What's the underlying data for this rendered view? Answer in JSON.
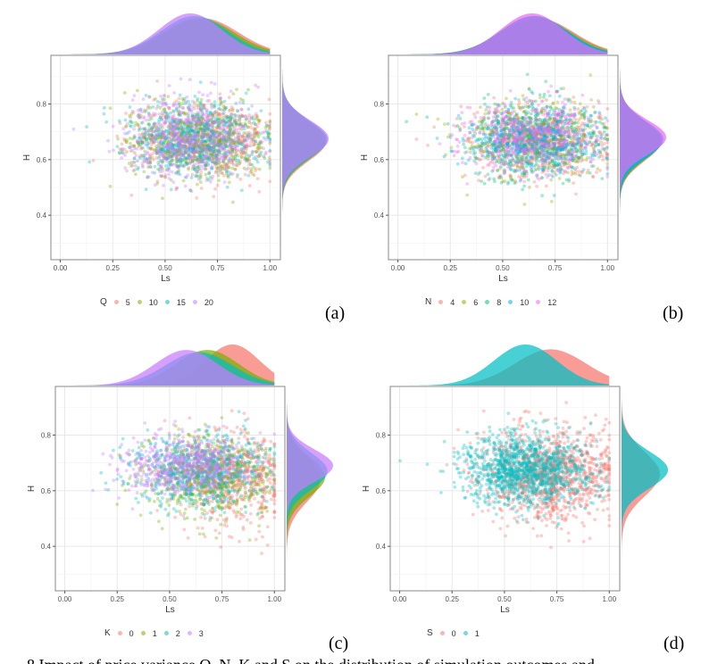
{
  "chart_data": [
    {
      "type": "scatter",
      "panel_label": "(a)",
      "xlabel": "Ls",
      "ylabel": "H",
      "xlim": [
        -0.045,
        1.05
      ],
      "ylim": [
        0.24,
        0.975
      ],
      "x_ticks": [
        "0.00",
        "0.25",
        "0.50",
        "0.75",
        "1.00"
      ],
      "y_ticks": [
        "0.4",
        "0.6",
        "0.8"
      ],
      "grid": true,
      "marginal_density": true,
      "legend": {
        "title": "Q",
        "placement": "bottom"
      },
      "series": [
        {
          "name": "5",
          "color": "#F8766D",
          "ls_mean": 0.68,
          "ls_sd": 0.17,
          "h_mean": 0.665,
          "h_sd": 0.07
        },
        {
          "name": "10",
          "color": "#7CAE00",
          "ls_mean": 0.66,
          "ls_sd": 0.17,
          "h_mean": 0.67,
          "h_sd": 0.07
        },
        {
          "name": "15",
          "color": "#00BFC4",
          "ls_mean": 0.64,
          "ls_sd": 0.16,
          "h_mean": 0.672,
          "h_sd": 0.068
        },
        {
          "name": "20",
          "color": "#C77CFF",
          "ls_mean": 0.62,
          "ls_sd": 0.15,
          "h_mean": 0.675,
          "h_sd": 0.066
        }
      ]
    },
    {
      "type": "scatter",
      "panel_label": "(b)",
      "xlabel": "Ls",
      "ylabel": "H",
      "xlim": [
        -0.045,
        1.05
      ],
      "ylim": [
        0.24,
        0.975
      ],
      "x_ticks": [
        "0.00",
        "0.25",
        "0.50",
        "0.75",
        "1.00"
      ],
      "y_ticks": [
        "0.4",
        "0.6",
        "0.8"
      ],
      "grid": true,
      "marginal_density": true,
      "legend": {
        "title": "N",
        "placement": "bottom"
      },
      "series": [
        {
          "name": "4",
          "color": "#F8766D",
          "ls_mean": 0.67,
          "ls_sd": 0.17,
          "h_mean": 0.665,
          "h_sd": 0.07
        },
        {
          "name": "6",
          "color": "#A3A500",
          "ls_mean": 0.66,
          "ls_sd": 0.17,
          "h_mean": 0.668,
          "h_sd": 0.07
        },
        {
          "name": "8",
          "color": "#00BF7D",
          "ls_mean": 0.65,
          "ls_sd": 0.16,
          "h_mean": 0.67,
          "h_sd": 0.068
        },
        {
          "name": "10",
          "color": "#00B0F6",
          "ls_mean": 0.65,
          "ls_sd": 0.16,
          "h_mean": 0.672,
          "h_sd": 0.066
        },
        {
          "name": "12",
          "color": "#E76BF3",
          "ls_mean": 0.64,
          "ls_sd": 0.15,
          "h_mean": 0.68,
          "h_sd": 0.062
        }
      ]
    },
    {
      "type": "scatter",
      "panel_label": "(c)",
      "xlabel": "Ls",
      "ylabel": "H",
      "xlim": [
        -0.045,
        1.05
      ],
      "ylim": [
        0.24,
        0.975
      ],
      "x_ticks": [
        "0.00",
        "0.25",
        "0.50",
        "0.75",
        "1.00"
      ],
      "y_ticks": [
        "0.4",
        "0.6",
        "0.8"
      ],
      "grid": true,
      "marginal_density": true,
      "legend": {
        "title": "K",
        "placement": "bottom"
      },
      "series": [
        {
          "name": "0",
          "color": "#F8766D",
          "ls_mean": 0.8,
          "ls_sd": 0.13,
          "h_mean": 0.64,
          "h_sd": 0.08
        },
        {
          "name": "1",
          "color": "#7CAE00",
          "ls_mean": 0.68,
          "ls_sd": 0.15,
          "h_mean": 0.65,
          "h_sd": 0.07
        },
        {
          "name": "2",
          "color": "#00BFC4",
          "ls_mean": 0.64,
          "ls_sd": 0.16,
          "h_mean": 0.67,
          "h_sd": 0.066
        },
        {
          "name": "3",
          "color": "#C77CFF",
          "ls_mean": 0.58,
          "ls_sd": 0.15,
          "h_mean": 0.69,
          "h_sd": 0.058
        }
      ]
    },
    {
      "type": "scatter",
      "panel_label": "(d)",
      "xlabel": "Ls",
      "ylabel": "H",
      "xlim": [
        -0.045,
        1.05
      ],
      "ylim": [
        0.24,
        0.975
      ],
      "x_ticks": [
        "0.00",
        "0.25",
        "0.50",
        "0.75",
        "1.00"
      ],
      "y_ticks": [
        "0.4",
        "0.6",
        "0.8"
      ],
      "grid": true,
      "marginal_density": true,
      "legend": {
        "title": "S",
        "placement": "bottom"
      },
      "series": [
        {
          "name": "0",
          "color": "#F8766D",
          "ls_mean": 0.72,
          "ls_sd": 0.17,
          "h_mean": 0.66,
          "h_sd": 0.08
        },
        {
          "name": "1",
          "color": "#00BFC4",
          "ls_mean": 0.6,
          "ls_sd": 0.15,
          "h_mean": 0.675,
          "h_sd": 0.066
        }
      ]
    }
  ],
  "caption": "8 Impact of price variance Q, N, K and S on the distribution of simulation outcomes and"
}
